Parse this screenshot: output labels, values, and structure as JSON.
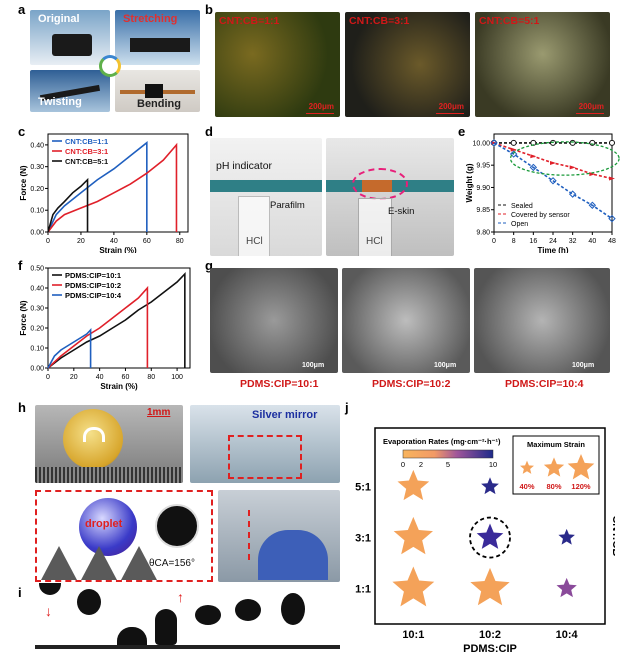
{
  "panels": {
    "a": {
      "label": "a",
      "photos": [
        {
          "caption": "Original",
          "color": "#ffffff"
        },
        {
          "caption": "Stretching",
          "color": "#e03030"
        },
        {
          "caption": "Twisting",
          "color": "#ffffff"
        },
        {
          "caption": "Bending",
          "color": "#222222"
        }
      ]
    },
    "b": {
      "label": "b",
      "images": [
        {
          "caption": "CNT:CB=1:1",
          "scale": "200μm"
        },
        {
          "caption": "CNT:CB=3:1",
          "scale": "200μm"
        },
        {
          "caption": "CNT:CB=5:1",
          "scale": "200μm"
        }
      ]
    },
    "d": {
      "label": "d",
      "texts": {
        "indicator": "pH indicator",
        "parafilm": "Parafilm",
        "hcl_left": "HCl",
        "eskin": "E-skin",
        "hcl_right": "HCl"
      }
    },
    "g": {
      "label": "g",
      "images": [
        {
          "caption": "PDMS:CIP=10:1",
          "scale": "100μm"
        },
        {
          "caption": "PDMS:CIP=10:2",
          "scale": "100μm"
        },
        {
          "caption": "PDMS:CIP=10:4",
          "scale": "100μm"
        }
      ]
    },
    "h": {
      "label": "h",
      "texts": {
        "scale": "1mm",
        "mirror": "Silver mirror",
        "droplet": "droplet",
        "angle": "θCA=156°"
      }
    },
    "i": {
      "label": "i"
    }
  },
  "chart_data": [
    {
      "id": "c",
      "label": "c",
      "type": "line",
      "xlabel": "Strain (%)",
      "ylabel": "Force (N)",
      "xlim": [
        0,
        85
      ],
      "ylim": [
        0,
        0.45
      ],
      "xticks": [
        0,
        20,
        40,
        60,
        80
      ],
      "yticks": [
        0.0,
        0.1,
        0.2,
        0.3,
        0.4
      ],
      "legend_position": "top-left",
      "series": [
        {
          "name": "CNT:CB=1:1",
          "color": "#1f5fbf",
          "x": [
            0,
            5,
            10,
            20,
            30,
            40,
            50,
            60,
            60
          ],
          "y": [
            0,
            0.08,
            0.12,
            0.18,
            0.24,
            0.29,
            0.35,
            0.41,
            0
          ]
        },
        {
          "name": "CNT:CB=3:1",
          "color": "#e0202a",
          "x": [
            0,
            5,
            10,
            20,
            30,
            40,
            50,
            60,
            70,
            78,
            78
          ],
          "y": [
            0,
            0.05,
            0.08,
            0.11,
            0.14,
            0.18,
            0.22,
            0.27,
            0.33,
            0.4,
            0
          ]
        },
        {
          "name": "CNT:CB=5:1",
          "color": "#111111",
          "x": [
            0,
            3,
            6,
            10,
            15,
            20,
            24,
            24
          ],
          "y": [
            0,
            0.08,
            0.11,
            0.14,
            0.18,
            0.21,
            0.24,
            0
          ]
        }
      ]
    },
    {
      "id": "e",
      "label": "e",
      "type": "line",
      "xlabel": "Time (h)",
      "ylabel": "Weight (g)",
      "xlim": [
        0,
        48
      ],
      "ylim": [
        9.8,
        10.02
      ],
      "xticks": [
        0,
        8,
        16,
        24,
        32,
        40,
        48
      ],
      "yticks": [
        9.8,
        9.85,
        9.9,
        9.95,
        10.0
      ],
      "legend_position": "bottom-left",
      "series": [
        {
          "name": "Sealed",
          "color": "#111111",
          "marker": "circle",
          "x": [
            0,
            8,
            16,
            24,
            32,
            40,
            48
          ],
          "y": [
            10.0,
            10.0,
            10.0,
            10.0,
            10.0,
            10.0,
            10.0
          ]
        },
        {
          "name": "Covered by sensor",
          "color": "#e0202a",
          "marker": "triangle",
          "x": [
            0,
            8,
            16,
            24,
            32,
            40,
            48
          ],
          "y": [
            10.0,
            9.985,
            9.97,
            9.955,
            9.945,
            9.93,
            9.92
          ]
        },
        {
          "name": "Open",
          "color": "#1f5fbf",
          "marker": "diamond",
          "x": [
            0,
            8,
            16,
            24,
            32,
            40,
            48
          ],
          "y": [
            10.0,
            9.975,
            9.945,
            9.915,
            9.885,
            9.86,
            9.83
          ]
        }
      ]
    },
    {
      "id": "f",
      "label": "f",
      "type": "line",
      "xlabel": "Strain (%)",
      "ylabel": "Force (N)",
      "xlim": [
        0,
        110
      ],
      "ylim": [
        0,
        0.5
      ],
      "xticks": [
        0,
        20,
        40,
        60,
        80,
        100
      ],
      "yticks": [
        0.0,
        0.1,
        0.2,
        0.3,
        0.4,
        0.5
      ],
      "legend_position": "top-left",
      "series": [
        {
          "name": "PDMS:CIP=10:1",
          "color": "#111111",
          "x": [
            0,
            10,
            20,
            30,
            40,
            50,
            60,
            70,
            80,
            90,
            100,
            106,
            106
          ],
          "y": [
            0,
            0.05,
            0.09,
            0.13,
            0.16,
            0.2,
            0.24,
            0.29,
            0.33,
            0.38,
            0.43,
            0.47,
            0
          ]
        },
        {
          "name": "PDMS:CIP=10:2",
          "color": "#e0202a",
          "x": [
            0,
            10,
            20,
            30,
            40,
            50,
            60,
            70,
            77,
            77
          ],
          "y": [
            0,
            0.06,
            0.11,
            0.16,
            0.2,
            0.25,
            0.3,
            0.35,
            0.4,
            0
          ]
        },
        {
          "name": "PDMS:CIP=10:4",
          "color": "#1f5fbf",
          "x": [
            0,
            5,
            10,
            15,
            20,
            25,
            30,
            33,
            33
          ],
          "y": [
            0,
            0.06,
            0.09,
            0.11,
            0.13,
            0.15,
            0.17,
            0.19,
            0
          ]
        }
      ]
    },
    {
      "id": "j",
      "label": "j",
      "type": "scatter",
      "xlabel": "PDMS:CIP",
      "ylabel": "CNT:CB",
      "categories_x": [
        "10:1",
        "10:2",
        "10:4"
      ],
      "categories_y": [
        "1:1",
        "3:1",
        "5:1"
      ],
      "colorbar": {
        "title": "Evaporation Rates (mg·cm⁻²·h⁻¹)",
        "ticks": [
          0,
          2,
          5,
          10
        ]
      },
      "size_legend": {
        "title": "Maximum Strain",
        "values": [
          "40%",
          "80%",
          "120%"
        ]
      },
      "points": [
        {
          "x": "10:1",
          "y": "5:1",
          "strain": 80,
          "rate": 1,
          "color": "#f4a259",
          "highlight": false
        },
        {
          "x": "10:2",
          "y": "5:1",
          "strain": 25,
          "rate": 10,
          "color": "#2a2a8a",
          "highlight": false
        },
        {
          "x": "10:1",
          "y": "3:1",
          "strain": 110,
          "rate": 1,
          "color": "#f4a259",
          "highlight": false
        },
        {
          "x": "10:2",
          "y": "3:1",
          "strain": 60,
          "rate": 9,
          "color": "#3a2a9a",
          "highlight": true
        },
        {
          "x": "10:4",
          "y": "3:1",
          "strain": 20,
          "rate": 10,
          "color": "#2a2a8a",
          "highlight": false
        },
        {
          "x": "10:1",
          "y": "1:1",
          "strain": 120,
          "rate": 1,
          "color": "#f4a259",
          "highlight": false
        },
        {
          "x": "10:2",
          "y": "1:1",
          "strain": 110,
          "rate": 1,
          "color": "#f4a259",
          "highlight": false
        },
        {
          "x": "10:4",
          "y": "1:1",
          "strain": 35,
          "rate": 5,
          "color": "#8a4a9a",
          "highlight": false
        }
      ]
    }
  ]
}
